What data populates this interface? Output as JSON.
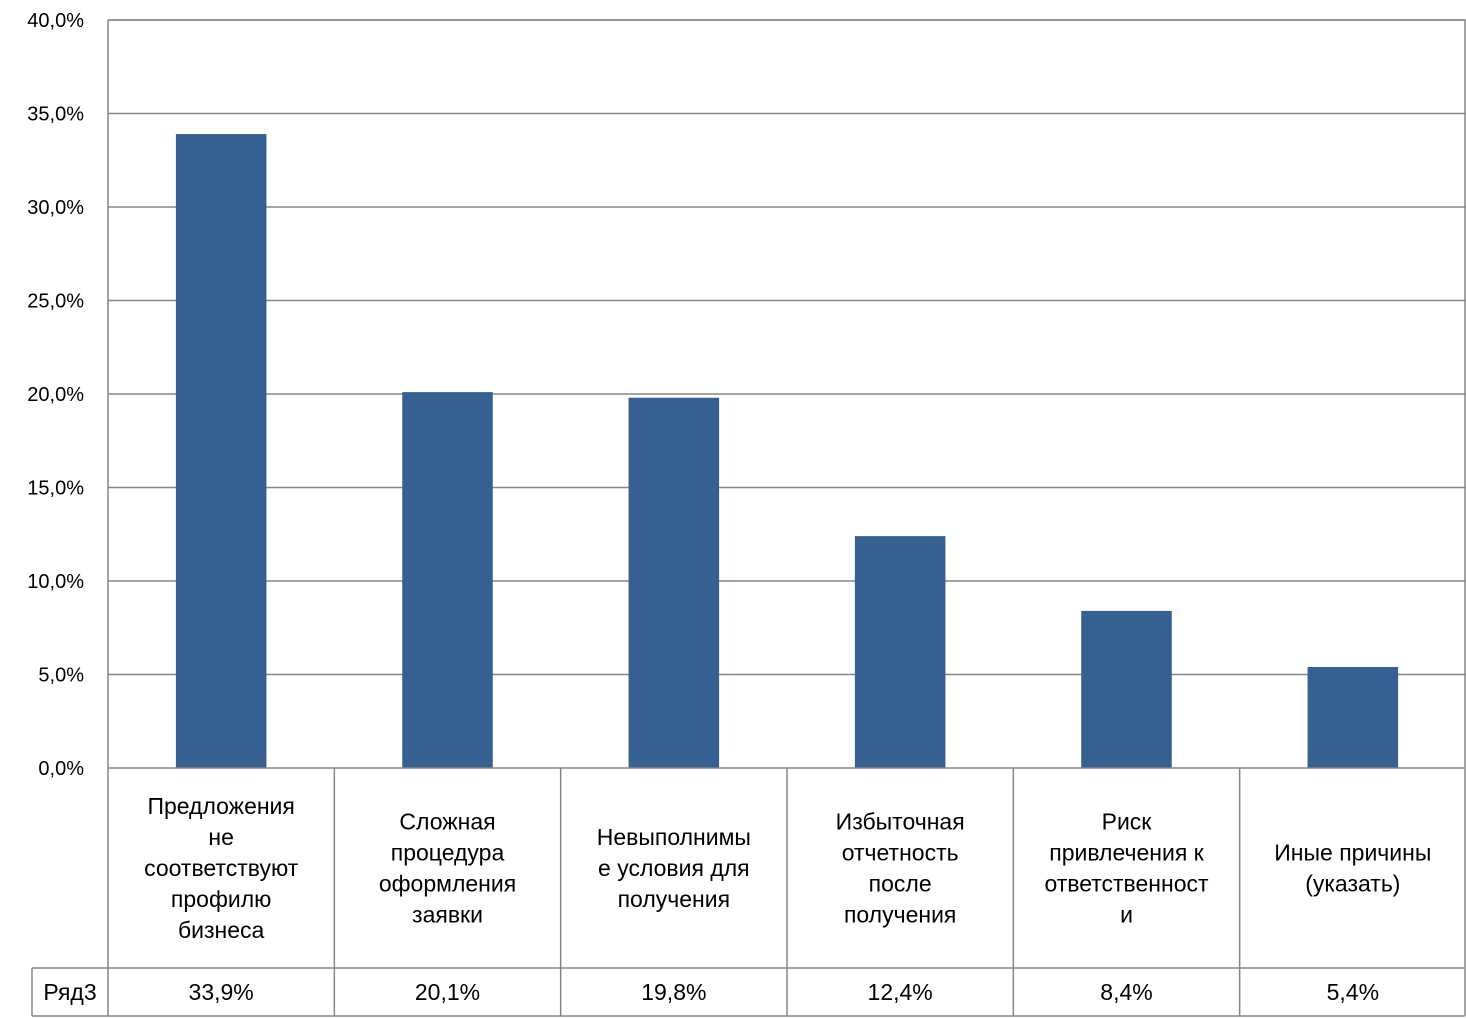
{
  "chart_data": {
    "type": "bar",
    "categories": [
      [
        "Предложения",
        "не",
        "соответствуют",
        "профилю",
        "бизнеса"
      ],
      [
        "Сложная",
        "процедура",
        "оформления",
        "заявки"
      ],
      [
        "Невыполнимы",
        "е условия для",
        "получения"
      ],
      [
        "Избыточная",
        "отчетность",
        "после",
        "получения"
      ],
      [
        "Риск",
        "привлечения к",
        "ответственност",
        "и"
      ],
      [
        "Иные причины",
        "(указать)"
      ]
    ],
    "series": [
      {
        "name": "Ряд3",
        "values": [
          33.9,
          20.1,
          19.8,
          12.4,
          8.4,
          5.4
        ],
        "labels": [
          "33,9%",
          "20,1%",
          "19,8%",
          "12,4%",
          "8,4%",
          "5,4%"
        ],
        "color": "#376092"
      }
    ],
    "ylim": [
      0,
      40
    ],
    "yticks": [
      "0,0%",
      "5,0%",
      "10,0%",
      "15,0%",
      "20,0%",
      "25,0%",
      "30,0%",
      "35,0%",
      "40,0%"
    ],
    "grid": true,
    "data_table": true,
    "xlabel": "",
    "ylabel": ""
  }
}
